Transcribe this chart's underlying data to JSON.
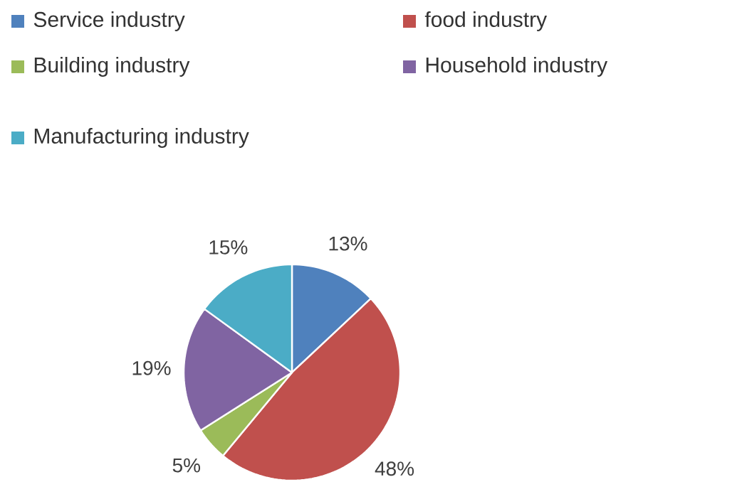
{
  "chart_data": {
    "type": "pie",
    "categories": [
      "Service industry",
      "food industry",
      "Building industry",
      "Household industry",
      "Manufacturing industry"
    ],
    "values": [
      13,
      48,
      5,
      19,
      15
    ],
    "value_labels": [
      "13%",
      "48%",
      "5%",
      "19%",
      "15%"
    ],
    "colors": [
      "#4f81bd",
      "#c0504d",
      "#9bbb59",
      "#8064a2",
      "#4bacc6"
    ],
    "legend": "top"
  }
}
